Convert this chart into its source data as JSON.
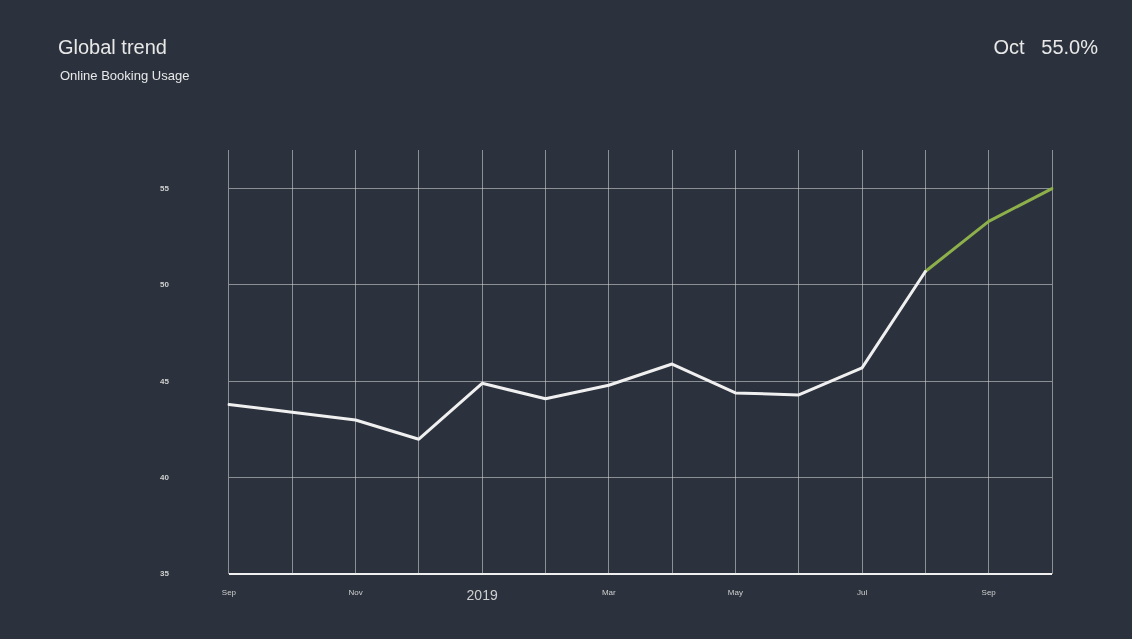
{
  "chart_data": {
    "type": "line",
    "title": "Global trend",
    "subtitle": "Online Booking Usage",
    "annotations": [
      "Oct   55.0%"
    ],
    "categories": [
      "Sep",
      null,
      "Nov",
      null,
      "2019",
      null,
      "Mar",
      null,
      "May",
      null,
      "Jul",
      null,
      "Sep",
      null
    ],
    "series": [
      {
        "color": "#f0f0f0",
        "values": [
          43.8,
          43.4,
          43.0,
          42.0,
          44.9,
          44.1,
          44.8,
          45.9,
          44.4,
          44.3,
          45.7,
          50.7,
          null,
          null
        ]
      },
      {
        "color": "#8db04a",
        "values": [
          null,
          null,
          null,
          null,
          null,
          null,
          null,
          null,
          null,
          null,
          null,
          50.7,
          53.3,
          55.0
        ]
      }
    ],
    "ylim": [
      35,
      57
    ],
    "yticks": [
      35,
      40,
      45,
      50,
      55
    ],
    "grid": true,
    "legend": false,
    "marker": "none",
    "line_style": "solid"
  }
}
